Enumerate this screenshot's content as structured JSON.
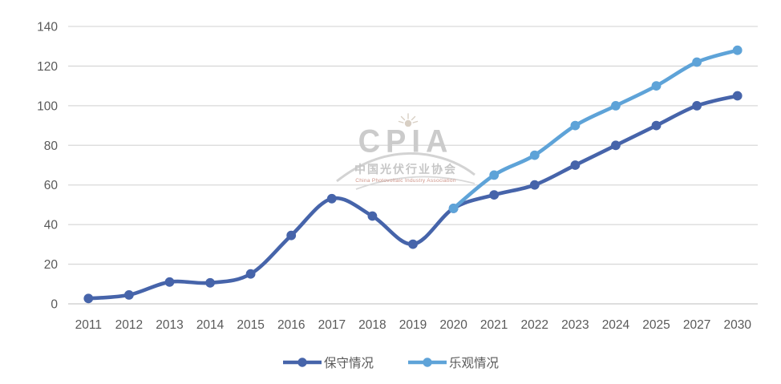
{
  "watermark": {
    "logo_text": "CPIA",
    "org_cn": "中国光伏行业协会",
    "org_en": "China Photovoltaic Industry Association"
  },
  "colors": {
    "conservative": "#4664aa",
    "optimistic": "#5ea3d8",
    "gridline": "#d9d9d9",
    "axis_line": "#c9c9c9",
    "tick_text": "#595959",
    "watermark_gray": "#cbcbcb",
    "watermark_red": "#cf9488",
    "sun": "#d8cfc4"
  },
  "chart_data": {
    "type": "line",
    "smooth": true,
    "title": "",
    "xlabel": "",
    "ylabel": "",
    "grid": true,
    "legend_position": "bottom",
    "ylim": [
      0,
      140
    ],
    "yticks": [
      0,
      20,
      40,
      60,
      80,
      100,
      120,
      140
    ],
    "categories": [
      "2011",
      "2012",
      "2013",
      "2014",
      "2015",
      "2016",
      "2017",
      "2018",
      "2019",
      "2020",
      "2021",
      "2022",
      "2023",
      "2024",
      "2025",
      "2027",
      "2030"
    ],
    "series": [
      {
        "name": "保守情况",
        "color": "#4664aa",
        "values": [
          2.7,
          4.5,
          11,
          10.6,
          15.1,
          34.5,
          53.1,
          44.3,
          30.1,
          48.2,
          55,
          60,
          70,
          80,
          90,
          100,
          105
        ]
      },
      {
        "name": "乐观情况",
        "color": "#5ea3d8",
        "values": [
          null,
          null,
          null,
          null,
          null,
          null,
          null,
          null,
          null,
          48.2,
          65,
          75,
          90,
          100,
          110,
          122,
          128
        ]
      }
    ]
  }
}
